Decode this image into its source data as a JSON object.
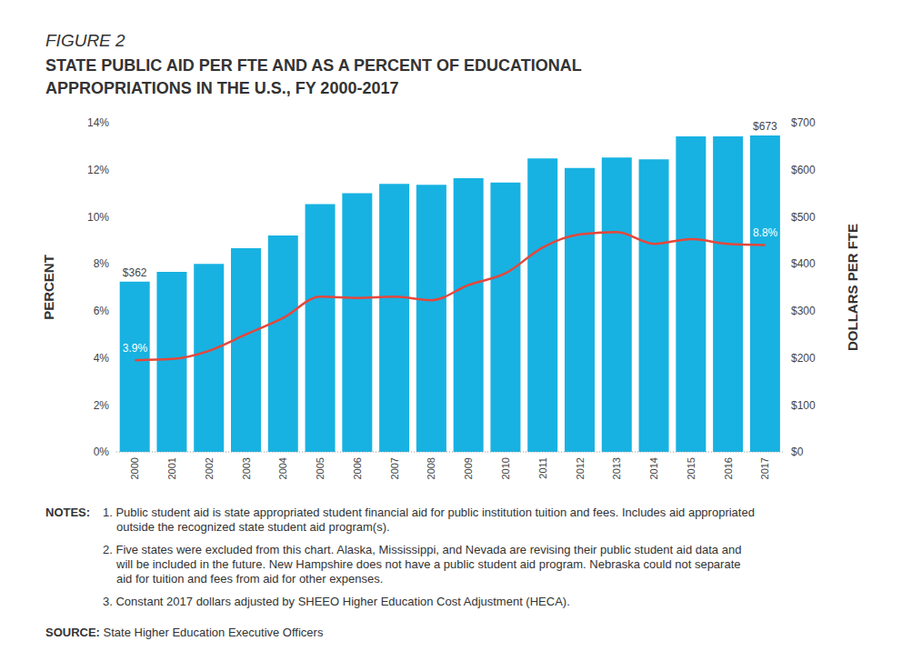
{
  "chart_data": {
    "type": "bar_line",
    "figure_label": "FIGURE 2",
    "title": "STATE PUBLIC AID PER FTE AND AS A PERCENT OF EDUCATIONAL APPROPRIATIONS IN THE U.S., FY 2000-2017",
    "categories": [
      "2000",
      "2001",
      "2002",
      "2003",
      "2004",
      "2005",
      "2006",
      "2007",
      "2008",
      "2009",
      "2010",
      "2011",
      "2012",
      "2013",
      "2014",
      "2015",
      "2016",
      "2017"
    ],
    "series": [
      {
        "type": "bar",
        "axis": "y2",
        "color": "#17b2e2",
        "values": [
          362,
          383,
          400,
          433,
          460,
          527,
          550,
          570,
          568,
          582,
          573,
          624,
          604,
          626,
          622,
          671,
          671,
          673
        ],
        "value_labels": [
          "$362",
          null,
          null,
          null,
          null,
          null,
          null,
          null,
          null,
          null,
          null,
          null,
          null,
          null,
          null,
          null,
          null,
          "$673"
        ]
      },
      {
        "type": "line",
        "color": "#e5473b",
        "values": [
          3.9,
          3.95,
          4.3,
          5.0,
          5.7,
          6.6,
          6.55,
          6.6,
          6.45,
          7.1,
          7.6,
          8.7,
          9.25,
          9.35,
          8.85,
          9.05,
          8.85,
          8.8
        ],
        "value_labels": [
          "3.9%",
          null,
          null,
          null,
          null,
          null,
          null,
          null,
          null,
          null,
          null,
          null,
          null,
          null,
          null,
          null,
          null,
          "8.8%"
        ]
      }
    ],
    "ylim": [
      0,
      14
    ],
    "yticks": [
      {
        "value": 0,
        "label": "0%"
      },
      {
        "value": 2,
        "label": "2%"
      },
      {
        "value": 4,
        "label": "4%"
      },
      {
        "value": 6,
        "label": "6%"
      },
      {
        "value": 8,
        "label": "8%"
      },
      {
        "value": 10,
        "label": "10%"
      },
      {
        "value": 12,
        "label": "12%"
      },
      {
        "value": 14,
        "label": "14%"
      }
    ],
    "y2lim": [
      0,
      700
    ],
    "y2ticks": [
      {
        "value": 0,
        "label": "$0"
      },
      {
        "value": 100,
        "label": "$100"
      },
      {
        "value": 200,
        "label": "$200"
      },
      {
        "value": 300,
        "label": "$300"
      },
      {
        "value": 400,
        "label": "$400"
      },
      {
        "value": 500,
        "label": "$500"
      },
      {
        "value": 600,
        "label": "$600"
      },
      {
        "value": 700,
        "label": "$700"
      }
    ],
    "y_label": "PERCENT",
    "y2_label": "DOLLARS PER FTE",
    "grid": false,
    "notes_label": "NOTES:",
    "notes": [
      "1. Public student aid is state appropriated student financial aid for public institution tuition and fees. Includes aid appropriated outside the recognized state student aid program(s).",
      "2. Five states were excluded from this chart. Alaska, Mississippi, and Nevada are revising their public student aid data and will be included in the future. New Hampshire does not have a public student aid program. Nebraska could not separate aid for tuition and fees from aid for other expenses.",
      "3. Constant 2017 dollars adjusted by SHEEO Higher Education Cost Adjustment (HECA)."
    ],
    "source_label": "SOURCE:",
    "source": "State Higher Education Executive Officers"
  }
}
